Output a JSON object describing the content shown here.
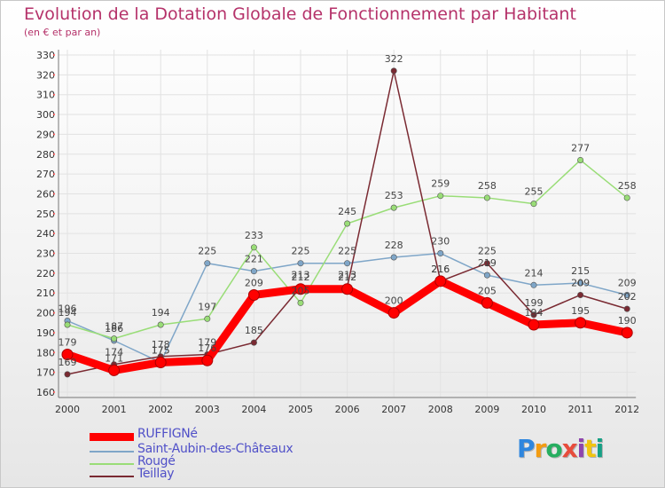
{
  "chart_data": {
    "type": "line",
    "title": "Evolution de la Dotation Globale de Fonctionnement par Habitant",
    "subtitle": "(en € et par an)",
    "xlabel": "",
    "ylabel": "",
    "x": [
      "2000",
      "2001",
      "2002",
      "2003",
      "2004",
      "2005",
      "2006",
      "2007",
      "2008",
      "2009",
      "2010",
      "2011",
      "2012"
    ],
    "ylim": [
      160,
      330
    ],
    "yticks": [
      160,
      170,
      180,
      190,
      200,
      210,
      220,
      230,
      240,
      250,
      260,
      270,
      280,
      290,
      300,
      310,
      320,
      330
    ],
    "legend_position": "bottom-left",
    "series": [
      {
        "name": "RUFFIGNé",
        "color": "#ff0000",
        "values": [
          179,
          171,
          175,
          176,
          209,
          212,
          212,
          200,
          216,
          205,
          194,
          195,
          190
        ]
      },
      {
        "name": "Saint-Aubin-des-Châteaux",
        "color": "#7fa6c8",
        "values": [
          196,
          186,
          175,
          225,
          221,
          225,
          225,
          228,
          230,
          219,
          214,
          215,
          209
        ]
      },
      {
        "name": "Rougé",
        "color": "#99dd77",
        "values": [
          194,
          187,
          194,
          197,
          233,
          205,
          245,
          253,
          259,
          258,
          255,
          277,
          258
        ]
      },
      {
        "name": "Teillay",
        "color": "#7a2a32",
        "values": [
          169,
          174,
          178,
          179,
          185,
          213,
          213,
          322,
          216,
          225,
          199,
          209,
          202
        ]
      }
    ]
  },
  "logo": {
    "letters": [
      "P",
      "r",
      "o",
      "x",
      "i",
      "t",
      "i"
    ],
    "colors": [
      "#2e86de",
      "#f39c12",
      "#27ae60",
      "#e74c3c",
      "#8e44ad",
      "#f1c40f",
      "#16a085"
    ]
  }
}
